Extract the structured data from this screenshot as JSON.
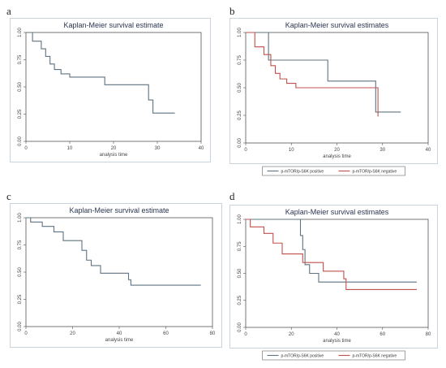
{
  "chart_data": [
    {
      "panel": "a",
      "type": "line",
      "title": "Kaplan-Meier survival estimate",
      "xlabel": "analysis time",
      "ylabel": "",
      "xlim": [
        0,
        40
      ],
      "ylim": [
        0,
        1
      ],
      "xticks": [
        "0",
        "10",
        "20",
        "30",
        "40"
      ],
      "yticks": [
        "0.00",
        "0.25",
        "0.50",
        "0.75",
        "1.00"
      ],
      "series": [
        {
          "color": "#5f7382",
          "x": [
            0,
            1.5,
            3.5,
            4.5,
            5.5,
            6.5,
            8,
            10,
            18,
            28,
            29,
            34
          ],
          "y": [
            1.0,
            0.92,
            0.85,
            0.78,
            0.71,
            0.66,
            0.62,
            0.59,
            0.52,
            0.38,
            0.26,
            0.26
          ]
        }
      ]
    },
    {
      "panel": "b",
      "type": "line",
      "title": "Kaplan-Meier survival estimates",
      "xlabel": "analysis time",
      "ylabel": "",
      "xlim": [
        0,
        40
      ],
      "ylim": [
        0,
        1
      ],
      "xticks": [
        "0",
        "10",
        "20",
        "30",
        "40"
      ],
      "yticks": [
        "0.00",
        "0.25",
        "0.50",
        "0.75",
        "1.00"
      ],
      "legend": "bottom",
      "series": [
        {
          "name": "p-mTOR/p-S6K positive",
          "color": "#5f7382",
          "x": [
            0,
            5,
            18,
            28.5,
            34
          ],
          "y": [
            1.0,
            0.75,
            0.56,
            0.28,
            0.28
          ]
        },
        {
          "name": "p-mTOR/p-S6K negative",
          "color": "#c0504d",
          "x": [
            0,
            2,
            4,
            5.5,
            6.5,
            7.5,
            9,
            11,
            29
          ],
          "y": [
            1.0,
            0.87,
            0.8,
            0.7,
            0.63,
            0.58,
            0.54,
            0.5,
            0.24
          ]
        }
      ]
    },
    {
      "panel": "c",
      "type": "line",
      "title": "Kaplan-Meier survival estimate",
      "xlabel": "analysis time",
      "ylabel": "",
      "xlim": [
        0,
        80
      ],
      "ylim": [
        0,
        1
      ],
      "xticks": [
        "0",
        "20",
        "40",
        "60",
        "80"
      ],
      "yticks": [
        "0.00",
        "0.25",
        "0.50",
        "0.75",
        "1.00"
      ],
      "series": [
        {
          "color": "#5f7382",
          "x": [
            0,
            2,
            7,
            12,
            16,
            24,
            26,
            28,
            32,
            44,
            45,
            75
          ],
          "y": [
            1.0,
            0.96,
            0.92,
            0.87,
            0.79,
            0.7,
            0.61,
            0.56,
            0.49,
            0.43,
            0.38,
            0.38
          ]
        }
      ]
    },
    {
      "panel": "d",
      "type": "line",
      "title": "Kaplan-Meier survival estimates",
      "xlabel": "analysis time",
      "ylabel": "",
      "xlim": [
        0,
        80
      ],
      "ylim": [
        0,
        1
      ],
      "xticks": [
        "0",
        "20",
        "40",
        "60",
        "80"
      ],
      "yticks": [
        "0.00",
        "0.25",
        "0.50",
        "0.75",
        "1.00"
      ],
      "legend": "bottom",
      "series": [
        {
          "name": "p-mTOR/p-S6K positive",
          "color": "#5f7382",
          "x": [
            0,
            24,
            25,
            26,
            28,
            32,
            75
          ],
          "y": [
            1.0,
            0.85,
            0.72,
            0.58,
            0.5,
            0.42,
            0.42
          ]
        },
        {
          "name": "p-mTOR/p-S6K negative",
          "color": "#c0504d",
          "x": [
            0,
            2,
            8,
            12,
            16,
            25,
            34,
            43,
            44,
            75
          ],
          "y": [
            1.0,
            0.93,
            0.87,
            0.78,
            0.68,
            0.6,
            0.52,
            0.45,
            0.35,
            0.35
          ]
        }
      ]
    }
  ]
}
